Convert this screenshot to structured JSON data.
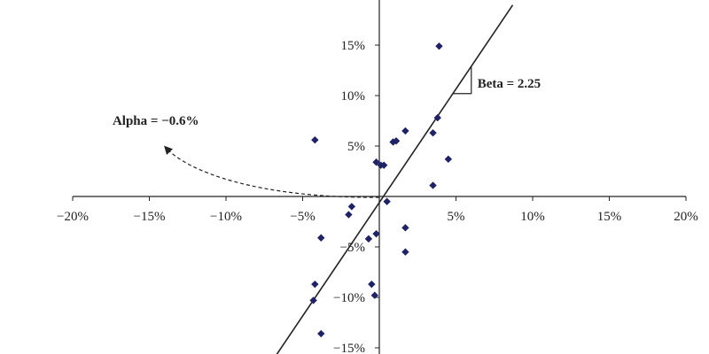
{
  "chart_data": {
    "type": "scatter",
    "title": "",
    "xlabel": "",
    "ylabel": "",
    "xlim": [
      -20,
      20
    ],
    "ylim": [
      -15,
      15
    ],
    "x_ticks": [
      -20,
      -15,
      -10,
      -5,
      5,
      10,
      15,
      20
    ],
    "y_ticks": [
      15,
      10,
      5,
      -5,
      -10,
      -15
    ],
    "x_tick_labels": [
      "−20%",
      "−15%",
      "−10%",
      "−5%",
      "5%",
      "10%",
      "15%",
      "20%"
    ],
    "y_tick_labels": [
      "15%",
      "10%",
      "5%",
      "−5%",
      "−10%",
      "−15%"
    ],
    "marker_color": "#1f2366",
    "points": [
      {
        "x": 3.9,
        "y": 14.9
      },
      {
        "x": -4.2,
        "y": 5.6
      },
      {
        "x": 1.7,
        "y": 6.5
      },
      {
        "x": 3.5,
        "y": 6.3
      },
      {
        "x": 3.8,
        "y": 7.8
      },
      {
        "x": 0.9,
        "y": 5.4
      },
      {
        "x": 1.1,
        "y": 5.5
      },
      {
        "x": -0.2,
        "y": 3.4
      },
      {
        "x": 0.1,
        "y": 3.1
      },
      {
        "x": 0.3,
        "y": 3.1
      },
      {
        "x": 4.5,
        "y": 3.7
      },
      {
        "x": 3.5,
        "y": 1.1
      },
      {
        "x": 0.5,
        "y": -0.5
      },
      {
        "x": -1.8,
        "y": -1.0
      },
      {
        "x": -2.0,
        "y": -1.8
      },
      {
        "x": 1.7,
        "y": -3.1
      },
      {
        "x": -0.2,
        "y": -3.7
      },
      {
        "x": -3.8,
        "y": -4.1
      },
      {
        "x": -0.7,
        "y": -4.2
      },
      {
        "x": 1.7,
        "y": -5.5
      },
      {
        "x": -4.2,
        "y": -8.7
      },
      {
        "x": -0.5,
        "y": -8.7
      },
      {
        "x": -0.3,
        "y": -9.8
      },
      {
        "x": -4.3,
        "y": -10.3
      },
      {
        "x": -3.8,
        "y": -13.6
      }
    ],
    "regression": {
      "alpha": -0.6,
      "beta": 2.25
    },
    "annotations": {
      "beta_label": "Beta = 2.25",
      "alpha_label": "Alpha = −0.6%"
    }
  }
}
